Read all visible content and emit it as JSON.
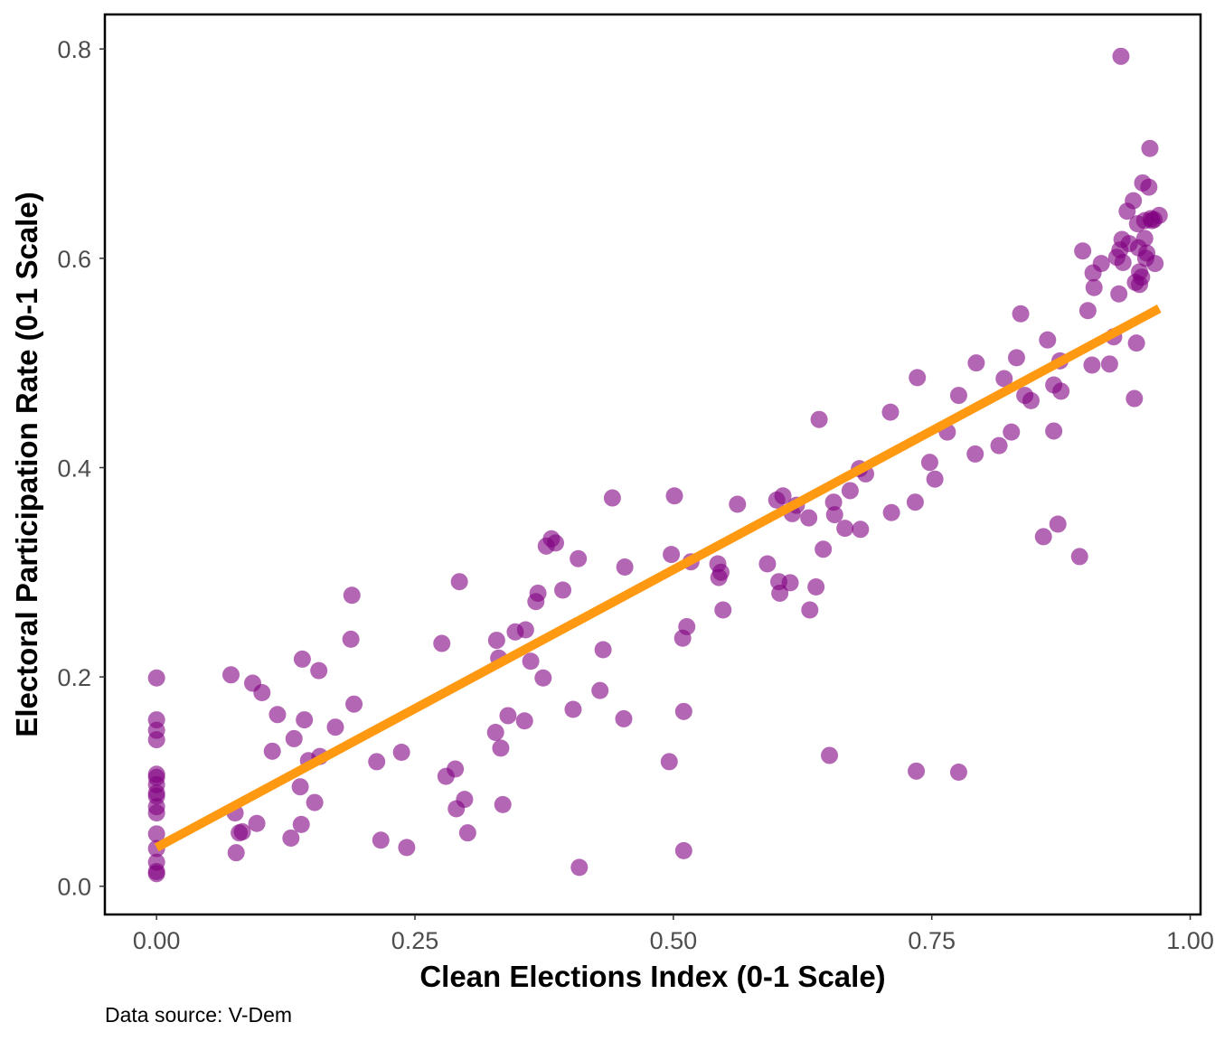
{
  "colors": {
    "point": "#800080",
    "trend": "#FF9912",
    "panel_border": "#000000",
    "tick_text": "#4d4d4d"
  },
  "chart_data": {
    "type": "scatter",
    "title": "",
    "xlabel": "Clean Elections Index (0-1 Scale)",
    "ylabel": "Electoral Participation Rate (0-1 Scale)",
    "caption": "Data source: V-Dem",
    "xlim": [
      -0.05,
      1.01
    ],
    "ylim": [
      -0.027,
      0.833
    ],
    "x_ticks": [
      0.0,
      0.25,
      0.5,
      0.75,
      1.0
    ],
    "x_tick_labels": [
      "0.00",
      "0.25",
      "0.50",
      "0.75",
      "1.00"
    ],
    "y_ticks": [
      0.0,
      0.2,
      0.4,
      0.6,
      0.8
    ],
    "y_tick_labels": [
      "0.0",
      "0.2",
      "0.4",
      "0.6",
      "0.8"
    ],
    "grid": false,
    "legend": "none",
    "trend_line": {
      "x": [
        0.0,
        0.97
      ],
      "y": [
        0.037,
        0.552
      ]
    },
    "points": [
      [
        0.0,
        0.199
      ],
      [
        0.0,
        0.159
      ],
      [
        0.0,
        0.149
      ],
      [
        0.0,
        0.14
      ],
      [
        0.0,
        0.107
      ],
      [
        0.0,
        0.104
      ],
      [
        0.0,
        0.097
      ],
      [
        0.0,
        0.089
      ],
      [
        0.0,
        0.086
      ],
      [
        0.0,
        0.076
      ],
      [
        0.0,
        0.07
      ],
      [
        0.0,
        0.05
      ],
      [
        0.0,
        0.036
      ],
      [
        0.0,
        0.023
      ],
      [
        0.0,
        0.014
      ],
      [
        0.0,
        0.012
      ],
      [
        0.072,
        0.202
      ],
      [
        0.076,
        0.07
      ],
      [
        0.077,
        0.032
      ],
      [
        0.08,
        0.051
      ],
      [
        0.083,
        0.052
      ],
      [
        0.093,
        0.194
      ],
      [
        0.097,
        0.06
      ],
      [
        0.102,
        0.185
      ],
      [
        0.112,
        0.129
      ],
      [
        0.117,
        0.164
      ],
      [
        0.13,
        0.046
      ],
      [
        0.133,
        0.141
      ],
      [
        0.139,
        0.095
      ],
      [
        0.14,
        0.059
      ],
      [
        0.141,
        0.217
      ],
      [
        0.143,
        0.159
      ],
      [
        0.147,
        0.12
      ],
      [
        0.153,
        0.08
      ],
      [
        0.157,
        0.206
      ],
      [
        0.158,
        0.124
      ],
      [
        0.173,
        0.152
      ],
      [
        0.188,
        0.236
      ],
      [
        0.189,
        0.278
      ],
      [
        0.191,
        0.174
      ],
      [
        0.213,
        0.119
      ],
      [
        0.217,
        0.044
      ],
      [
        0.237,
        0.128
      ],
      [
        0.242,
        0.037
      ],
      [
        0.276,
        0.232
      ],
      [
        0.28,
        0.105
      ],
      [
        0.289,
        0.112
      ],
      [
        0.29,
        0.074
      ],
      [
        0.293,
        0.291
      ],
      [
        0.298,
        0.083
      ],
      [
        0.301,
        0.051
      ],
      [
        0.328,
        0.147
      ],
      [
        0.329,
        0.235
      ],
      [
        0.331,
        0.218
      ],
      [
        0.333,
        0.132
      ],
      [
        0.335,
        0.078
      ],
      [
        0.34,
        0.163
      ],
      [
        0.347,
        0.243
      ],
      [
        0.356,
        0.158
      ],
      [
        0.357,
        0.245
      ],
      [
        0.362,
        0.215
      ],
      [
        0.367,
        0.272
      ],
      [
        0.369,
        0.28
      ],
      [
        0.374,
        0.199
      ],
      [
        0.377,
        0.325
      ],
      [
        0.382,
        0.332
      ],
      [
        0.386,
        0.328
      ],
      [
        0.393,
        0.283
      ],
      [
        0.403,
        0.169
      ],
      [
        0.408,
        0.313
      ],
      [
        0.409,
        0.018
      ],
      [
        0.429,
        0.187
      ],
      [
        0.432,
        0.226
      ],
      [
        0.441,
        0.371
      ],
      [
        0.452,
        0.16
      ],
      [
        0.453,
        0.305
      ],
      [
        0.496,
        0.119
      ],
      [
        0.498,
        0.317
      ],
      [
        0.501,
        0.373
      ],
      [
        0.509,
        0.237
      ],
      [
        0.51,
        0.034
      ],
      [
        0.51,
        0.167
      ],
      [
        0.513,
        0.248
      ],
      [
        0.517,
        0.31
      ],
      [
        0.543,
        0.308
      ],
      [
        0.544,
        0.295
      ],
      [
        0.546,
        0.3
      ],
      [
        0.548,
        0.264
      ],
      [
        0.562,
        0.365
      ],
      [
        0.591,
        0.308
      ],
      [
        0.6,
        0.369
      ],
      [
        0.602,
        0.291
      ],
      [
        0.603,
        0.28
      ],
      [
        0.606,
        0.373
      ],
      [
        0.613,
        0.29
      ],
      [
        0.615,
        0.356
      ],
      [
        0.619,
        0.364
      ],
      [
        0.631,
        0.352
      ],
      [
        0.632,
        0.264
      ],
      [
        0.638,
        0.286
      ],
      [
        0.641,
        0.446
      ],
      [
        0.645,
        0.322
      ],
      [
        0.651,
        0.125
      ],
      [
        0.655,
        0.367
      ],
      [
        0.656,
        0.355
      ],
      [
        0.666,
        0.342
      ],
      [
        0.671,
        0.378
      ],
      [
        0.68,
        0.399
      ],
      [
        0.681,
        0.341
      ],
      [
        0.686,
        0.394
      ],
      [
        0.71,
        0.453
      ],
      [
        0.711,
        0.357
      ],
      [
        0.734,
        0.367
      ],
      [
        0.735,
        0.11
      ],
      [
        0.736,
        0.486
      ],
      [
        0.748,
        0.405
      ],
      [
        0.753,
        0.389
      ],
      [
        0.765,
        0.434
      ],
      [
        0.776,
        0.469
      ],
      [
        0.776,
        0.109
      ],
      [
        0.792,
        0.413
      ],
      [
        0.793,
        0.5
      ],
      [
        0.815,
        0.421
      ],
      [
        0.82,
        0.485
      ],
      [
        0.827,
        0.434
      ],
      [
        0.832,
        0.505
      ],
      [
        0.836,
        0.547
      ],
      [
        0.84,
        0.469
      ],
      [
        0.846,
        0.464
      ],
      [
        0.858,
        0.334
      ],
      [
        0.862,
        0.522
      ],
      [
        0.868,
        0.435
      ],
      [
        0.868,
        0.479
      ],
      [
        0.872,
        0.346
      ],
      [
        0.874,
        0.502
      ],
      [
        0.875,
        0.473
      ],
      [
        0.893,
        0.315
      ],
      [
        0.896,
        0.607
      ],
      [
        0.901,
        0.55
      ],
      [
        0.905,
        0.498
      ],
      [
        0.906,
        0.586
      ],
      [
        0.907,
        0.572
      ],
      [
        0.914,
        0.595
      ],
      [
        0.922,
        0.499
      ],
      [
        0.926,
        0.525
      ],
      [
        0.929,
        0.601
      ],
      [
        0.931,
        0.566
      ],
      [
        0.932,
        0.608
      ],
      [
        0.933,
        0.793
      ],
      [
        0.934,
        0.618
      ],
      [
        0.935,
        0.596
      ],
      [
        0.939,
        0.645
      ],
      [
        0.941,
        0.614
      ],
      [
        0.945,
        0.655
      ],
      [
        0.946,
        0.466
      ],
      [
        0.947,
        0.577
      ],
      [
        0.948,
        0.519
      ],
      [
        0.949,
        0.633
      ],
      [
        0.95,
        0.61
      ],
      [
        0.951,
        0.587
      ],
      [
        0.951,
        0.575
      ],
      [
        0.953,
        0.582
      ],
      [
        0.954,
        0.672
      ],
      [
        0.956,
        0.636
      ],
      [
        0.956,
        0.619
      ],
      [
        0.957,
        0.6
      ],
      [
        0.958,
        0.605
      ],
      [
        0.96,
        0.668
      ],
      [
        0.961,
        0.705
      ],
      [
        0.962,
        0.638
      ],
      [
        0.963,
        0.636
      ],
      [
        0.965,
        0.637
      ],
      [
        0.966,
        0.595
      ],
      [
        0.97,
        0.641
      ]
    ]
  }
}
